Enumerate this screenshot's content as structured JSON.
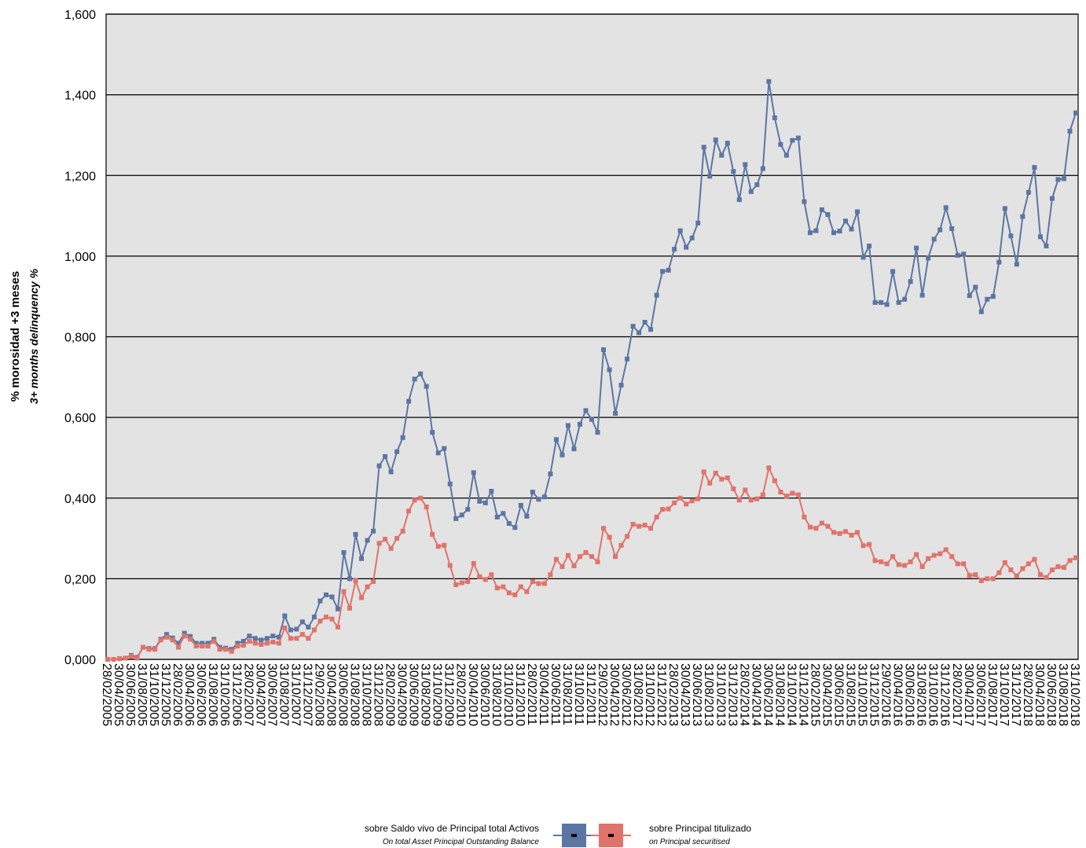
{
  "chart_data": {
    "type": "line",
    "y_label": "% morosidad +3 meses",
    "y_label_en": "3+ months delinquency %",
    "categories": [
      "28/02/2005",
      null,
      "30/04/2005",
      null,
      "30/06/2005",
      null,
      "31/08/2005",
      null,
      "31/10/2005",
      null,
      "31/12/2005",
      null,
      "28/02/2006",
      null,
      "30/04/2006",
      null,
      "30/06/2006",
      null,
      "31/08/2006",
      null,
      "31/10/2006",
      null,
      "31/12/2006",
      null,
      "28/02/2007",
      null,
      "30/04/2007",
      null,
      "30/06/2007",
      null,
      "31/08/2007",
      null,
      "31/10/2007",
      null,
      "31/12/2007",
      null,
      "29/02/2008",
      null,
      "30/04/2008",
      null,
      "30/06/2008",
      null,
      "31/08/2008",
      null,
      "31/10/2008",
      null,
      "31/12/2008",
      null,
      "28/02/2009",
      null,
      "30/04/2009",
      null,
      "30/06/2009",
      null,
      "31/08/2009",
      null,
      "31/10/2009",
      null,
      "31/12/2009",
      null,
      "28/02/2010",
      null,
      "30/04/2010",
      null,
      "30/06/2010",
      null,
      "31/08/2010",
      null,
      "31/10/2010",
      null,
      "31/12/2010",
      null,
      "28/02/2011",
      null,
      "30/04/2011",
      null,
      "30/06/2011",
      null,
      "31/08/2011",
      null,
      "31/10/2011",
      null,
      "31/12/2011",
      null,
      "29/02/2012",
      null,
      "30/04/2012",
      null,
      "30/06/2012",
      null,
      "31/08/2012",
      null,
      "31/10/2012",
      null,
      "31/12/2012",
      null,
      "28/02/2013",
      null,
      "30/04/2013",
      null,
      "30/06/2013",
      null,
      "31/08/2013",
      null,
      "31/10/2013",
      null,
      "31/12/2013",
      null,
      "28/02/2014",
      null,
      "30/04/2014",
      null,
      "30/06/2014",
      null,
      "31/08/2014",
      null,
      "31/10/2014",
      null,
      "31/12/2014",
      null,
      "28/02/2015",
      null,
      "30/04/2015",
      null,
      "30/06/2015",
      null,
      "31/08/2015",
      null,
      "31/10/2015",
      null,
      "31/12/2015",
      null,
      "29/02/2016",
      null,
      "30/04/2016",
      null,
      "30/06/2016",
      null,
      "31/08/2016",
      null,
      "31/10/2016",
      null,
      "31/12/2016",
      null,
      "28/02/2017",
      null,
      "30/04/2017",
      null,
      "30/06/2017",
      null,
      "31/08/2017",
      null,
      "31/10/2017",
      null,
      "31/12/2017",
      null,
      "28/02/2018",
      null,
      "30/04/2018",
      null,
      "30/06/2018",
      null,
      "31/08/2018",
      null,
      "31/10/2018"
    ],
    "series": [
      {
        "name": "sobre Saldo vivo de Principal total Activos",
        "name_en": "On total Asset Principal Outstanding Balance",
        "color": "#5b76a3",
        "values": [
          0.0,
          0.0,
          0.002,
          0.003,
          0.01,
          0.005,
          0.03,
          0.027,
          0.027,
          0.05,
          0.062,
          0.053,
          0.04,
          0.065,
          0.057,
          0.04,
          0.04,
          0.04,
          0.05,
          0.03,
          0.028,
          0.025,
          0.04,
          0.045,
          0.058,
          0.052,
          0.048,
          0.052,
          0.058,
          0.055,
          0.108,
          0.073,
          0.075,
          0.093,
          0.08,
          0.105,
          0.145,
          0.16,
          0.155,
          0.125,
          0.265,
          0.2,
          0.31,
          0.25,
          0.295,
          0.318,
          0.48,
          0.503,
          0.465,
          0.515,
          0.55,
          0.64,
          0.695,
          0.708,
          0.677,
          0.563,
          0.512,
          0.523,
          0.435,
          0.349,
          0.358,
          0.372,
          0.463,
          0.392,
          0.388,
          0.417,
          0.353,
          0.362,
          0.337,
          0.327,
          0.382,
          0.355,
          0.415,
          0.397,
          0.403,
          0.46,
          0.545,
          0.507,
          0.58,
          0.522,
          0.583,
          0.617,
          0.595,
          0.563,
          0.768,
          0.718,
          0.61,
          0.68,
          0.745,
          0.826,
          0.81,
          0.836,
          0.818,
          0.903,
          0.962,
          0.965,
          1.017,
          1.063,
          1.022,
          1.045,
          1.082,
          1.27,
          1.198,
          1.288,
          1.25,
          1.28,
          1.21,
          1.14,
          1.227,
          1.16,
          1.177,
          1.217,
          1.433,
          1.343,
          1.277,
          1.25,
          1.287,
          1.293,
          1.135,
          1.058,
          1.063,
          1.115,
          1.103,
          1.058,
          1.062,
          1.087,
          1.067,
          1.11,
          0.997,
          1.025,
          0.885,
          0.885,
          0.88,
          0.962,
          0.885,
          0.893,
          0.937,
          1.02,
          0.903,
          0.995,
          1.042,
          1.065,
          1.12,
          1.068,
          1.002,
          1.005,
          0.902,
          0.923,
          0.862,
          0.893,
          0.9,
          0.985,
          1.118,
          1.05,
          0.98,
          1.098,
          1.158,
          1.22,
          1.048,
          1.025,
          1.143,
          1.19,
          1.192,
          1.31,
          1.355
        ]
      },
      {
        "name": "sobre Principal titulizado",
        "name_en": "on Principal securitised",
        "color": "#e0736b",
        "values": [
          0.0,
          0.0,
          0.002,
          0.003,
          0.008,
          0.003,
          0.03,
          0.025,
          0.025,
          0.048,
          0.055,
          0.048,
          0.03,
          0.058,
          0.05,
          0.033,
          0.033,
          0.033,
          0.045,
          0.025,
          0.025,
          0.02,
          0.033,
          0.035,
          0.045,
          0.04,
          0.037,
          0.04,
          0.043,
          0.04,
          0.078,
          0.052,
          0.052,
          0.062,
          0.052,
          0.073,
          0.095,
          0.105,
          0.1,
          0.08,
          0.168,
          0.127,
          0.195,
          0.153,
          0.18,
          0.193,
          0.288,
          0.298,
          0.275,
          0.3,
          0.318,
          0.368,
          0.395,
          0.4,
          0.378,
          0.31,
          0.28,
          0.283,
          0.233,
          0.185,
          0.19,
          0.193,
          0.238,
          0.205,
          0.198,
          0.21,
          0.177,
          0.18,
          0.165,
          0.16,
          0.18,
          0.168,
          0.193,
          0.188,
          0.188,
          0.21,
          0.248,
          0.23,
          0.258,
          0.232,
          0.255,
          0.265,
          0.255,
          0.242,
          0.325,
          0.303,
          0.255,
          0.283,
          0.305,
          0.335,
          0.33,
          0.333,
          0.325,
          0.353,
          0.372,
          0.373,
          0.388,
          0.4,
          0.385,
          0.393,
          0.398,
          0.465,
          0.437,
          0.462,
          0.447,
          0.45,
          0.423,
          0.395,
          0.42,
          0.395,
          0.398,
          0.408,
          0.475,
          0.443,
          0.415,
          0.405,
          0.412,
          0.408,
          0.353,
          0.328,
          0.325,
          0.338,
          0.33,
          0.315,
          0.312,
          0.317,
          0.308,
          0.315,
          0.282,
          0.285,
          0.245,
          0.242,
          0.237,
          0.255,
          0.235,
          0.233,
          0.242,
          0.26,
          0.23,
          0.25,
          0.258,
          0.262,
          0.272,
          0.255,
          0.237,
          0.237,
          0.208,
          0.21,
          0.195,
          0.2,
          0.2,
          0.215,
          0.24,
          0.222,
          0.207,
          0.225,
          0.237,
          0.248,
          0.21,
          0.203,
          0.222,
          0.23,
          0.228,
          0.245,
          0.252
        ]
      }
    ],
    "ylim": [
      0,
      1.6
    ],
    "yticks": [
      {
        "value": 0,
        "label": "0,000"
      },
      {
        "value": 0.2,
        "label": "0,200"
      },
      {
        "value": 0.4,
        "label": "0,400"
      },
      {
        "value": 0.6,
        "label": "0,600"
      },
      {
        "value": 0.8,
        "label": "0,800"
      },
      {
        "value": 1.0,
        "label": "1,000"
      },
      {
        "value": 1.2,
        "label": "1,200"
      },
      {
        "value": 1.4,
        "label": "1,400"
      },
      {
        "value": 1.6,
        "label": "1,600"
      }
    ],
    "grid": true
  }
}
